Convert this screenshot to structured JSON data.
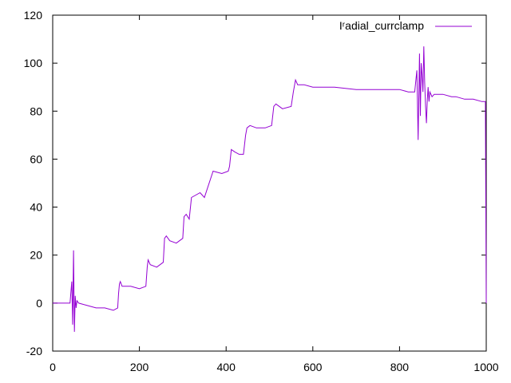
{
  "chart_data": {
    "type": "line",
    "title": "",
    "xlabel": "",
    "ylabel": "",
    "xlim": [
      0,
      1000
    ],
    "ylim": [
      -20,
      120
    ],
    "xticks": [
      0,
      200,
      400,
      600,
      800,
      1000
    ],
    "yticks": [
      -20,
      0,
      20,
      40,
      60,
      80,
      100,
      120
    ],
    "xtick_labels": [
      "0",
      "200",
      "400",
      "600",
      "800",
      "1000"
    ],
    "ytick_labels": [
      "-20",
      "0",
      "20",
      "40",
      "60",
      "80",
      "100",
      "120"
    ],
    "grid": false,
    "legend_position": "top-right",
    "series": [
      {
        "name": "Iʳadial_currclamp",
        "color": "#9400d3",
        "x": [
          0,
          40,
          44,
          46,
          48,
          50,
          52,
          54,
          56,
          60,
          80,
          100,
          120,
          140,
          150,
          152,
          154,
          156,
          160,
          180,
          200,
          215,
          218,
          220,
          225,
          240,
          255,
          258,
          262,
          270,
          285,
          300,
          303,
          308,
          315,
          320,
          340,
          345,
          350,
          370,
          390,
          405,
          408,
          412,
          420,
          430,
          440,
          445,
          448,
          455,
          470,
          490,
          505,
          510,
          515,
          530,
          550,
          555,
          560,
          565,
          580,
          600,
          650,
          700,
          750,
          800,
          820,
          835,
          840,
          843,
          846,
          848,
          850,
          852,
          854,
          856,
          858,
          860,
          862,
          864,
          866,
          868,
          870,
          875,
          880,
          900,
          920,
          930,
          950,
          970,
          990,
          995,
          998,
          1000
        ],
        "y": [
          0,
          0,
          9,
          -9,
          22,
          -12,
          3,
          -2,
          1,
          0,
          -1,
          -2,
          -2,
          -3,
          -2,
          4,
          8,
          9,
          7,
          7,
          6,
          7,
          15,
          18,
          16,
          15,
          17,
          27,
          28,
          26,
          25,
          27,
          36,
          37,
          35,
          44,
          46,
          45,
          44,
          55,
          54,
          55,
          57,
          64,
          63,
          62,
          62,
          70,
          73,
          74,
          73,
          73,
          74,
          82,
          83,
          81,
          82,
          88,
          93,
          91,
          91,
          90,
          90,
          89,
          89,
          89,
          88,
          88,
          97,
          68,
          104,
          78,
          100,
          95,
          88,
          107,
          92,
          82,
          75,
          85,
          90,
          84,
          88,
          86,
          87,
          87,
          86,
          86,
          85,
          85,
          84,
          84,
          84,
          0
        ]
      }
    ]
  }
}
